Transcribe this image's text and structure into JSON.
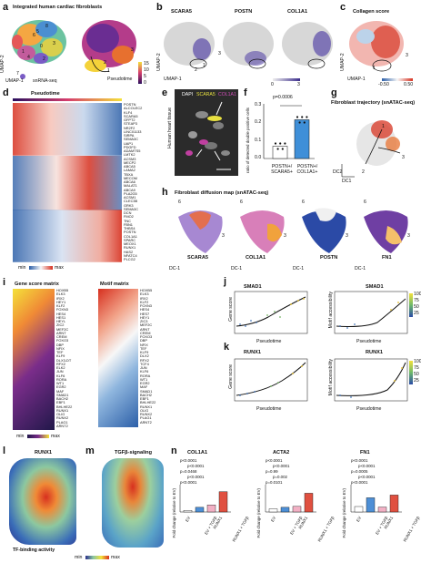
{
  "panels": {
    "a": {
      "letter": "a",
      "title": "Integrated human cardiac fibroblasts",
      "umap1": "UMAP-1",
      "umap2": "UMAP-2",
      "modality": "snRNA-seq",
      "pseudotime": "Pseudotime",
      "cb_ticks": [
        "15",
        "10",
        "5",
        "0"
      ],
      "clusters": [
        "0",
        "1",
        "2",
        "3",
        "4",
        "5",
        "6",
        "7",
        "8"
      ],
      "traj": [
        "1",
        "2",
        "3"
      ]
    },
    "b": {
      "letter": "b",
      "genes": [
        "SCARA5",
        "POSTN",
        "COL1A1"
      ],
      "umap1": "UMAP-1",
      "umap2": "UMAP-2",
      "traj": [
        "1",
        "2",
        "3"
      ],
      "cb_ticks": [
        "0",
        "3"
      ]
    },
    "c": {
      "letter": "c",
      "title": "Collagen score",
      "umap1": "UMAP-1",
      "umap2": "UMAP-2",
      "traj": [
        "1",
        "3"
      ],
      "cb_ticks": [
        "-0.50",
        "0.50"
      ]
    },
    "d": {
      "letter": "d",
      "title": "Pseudotime",
      "legend_min": "min",
      "legend_max": "max",
      "genes": [
        "POSTN",
        "ALCOLEC2",
        "KLF4",
        "SCARA5",
        "GFPT2",
        "STEAP3",
        "NR2F2",
        "LINC01133",
        "SIRPA",
        "SEMA3C",
        "UAP1",
        "PDGFD",
        "ADAMTS5",
        "LMTK2",
        "ACSM3",
        "MECP2",
        "ABCA5",
        "LAMA2",
        "TBXA",
        "MECOM",
        "ABCA6",
        "MALAT1",
        "ABCA9",
        "PLA2G5",
        "ACSM1",
        "CLEC3B",
        "GRK3",
        "SEMA3C",
        "DCN",
        "FMO2",
        "TNC",
        "FBN1",
        "THBS4",
        "POSTN",
        "COL1A1",
        "SPARC",
        "MEOX1",
        "RUNX1",
        "HAS2",
        "NFATC4",
        "PLCG2"
      ]
    },
    "e": {
      "letter": "e",
      "labels": [
        "DAPI",
        "SCARA5",
        "COL1A1"
      ],
      "side": "Human heart tissue"
    },
    "f": {
      "letter": "f",
      "pval": "p=0.0006",
      "ylabel": "ratio of detected double positive cells",
      "yticks": [
        "0.3",
        "0.2",
        "0.1",
        "0.0"
      ],
      "groups": [
        "POSTN+/ SCARA5+",
        "POSTN+/ COL1A1+"
      ]
    },
    "g": {
      "letter": "g",
      "title": "Fibroblast trajectory (snATAC-seq)",
      "dc1": "DC1",
      "dc2": "DC2",
      "traj": [
        "1",
        "2",
        "3"
      ]
    },
    "h": {
      "letter": "h",
      "title": "Fibroblast diffusion map (snATAC-seq)",
      "maps": [
        "SCARA5",
        "COL1A1",
        "POSTN",
        "FN1"
      ],
      "dc1": "DC-1",
      "dc2": "DC-2",
      "traj": [
        "1",
        "2",
        "3",
        "6"
      ]
    },
    "i": {
      "letter": "i",
      "gene_title": "Gene score matrix",
      "motif_title": "Motif matrix",
      "legend_min": "min",
      "legend_max": "max",
      "gene_rows": [
        "HOXB5",
        "ELK3",
        "IRX2",
        "HEY1",
        "KLF2",
        "FOXN3",
        "HES4",
        "HES1",
        "HEYL",
        "ZIC2",
        "MEF2C",
        "ARNT",
        "CREM",
        "FOXO3",
        "DBP",
        "NFIX",
        "TEF",
        "KLF9",
        "DLX3-DT",
        "RFX2",
        "ELK2",
        "JUN",
        "KLF6",
        "RORA",
        "WT1",
        "EGR2",
        "MAF",
        "SMAD1",
        "BACH2",
        "EBF1",
        "BHLHE22",
        "RUNX1",
        "OLIG",
        "RUNX2",
        "PLAG1",
        "ARNT2"
      ],
      "motif_rows": [
        "HOXB5",
        "ELK3",
        "IRX2",
        "KLF2",
        "FOXN3",
        "HES4",
        "HES7",
        "HEY1",
        "ZIC3",
        "MEF2C",
        "ARNT",
        "CREM",
        "FOXO3",
        "DBP",
        "NFIX",
        "TEF",
        "KLF9",
        "DLX2",
        "RFX2",
        "TCF4",
        "JUN",
        "KLF6",
        "RORA",
        "WT1",
        "EGR2",
        "MAF",
        "SMAD1",
        "BACH2",
        "EBF1",
        "BHLHE22",
        "RUNX1",
        "OLIG",
        "RUNX2",
        "PLAG1",
        "ARNT2"
      ]
    },
    "j": {
      "letter": "j",
      "gene": "SMAD1",
      "ylabel1": "Gene score",
      "ylabel2": "Motif accessibility",
      "xlabel": "Pseudotime",
      "xticks": [
        "0",
        "25",
        "50",
        "75",
        "100"
      ],
      "cb_ticks": [
        "100",
        "75",
        "50",
        "25"
      ]
    },
    "k": {
      "letter": "k",
      "gene": "RUNX1",
      "ylabel1": "Gene score",
      "ylabel2": "Motif accessibility",
      "xlabel": "Pseudotime",
      "xticks": [
        "0",
        "25",
        "50",
        "75",
        "100"
      ],
      "cb_ticks": [
        "100",
        "75",
        "50",
        "25"
      ]
    },
    "l": {
      "letter": "l",
      "title": "RUNX1",
      "caption": "TF-binding activity",
      "legend_min": "min",
      "legend_max": "max"
    },
    "m": {
      "letter": "m",
      "title": "TGFβ-signaling"
    },
    "n": {
      "letter": "n",
      "genes": [
        "COL1A1",
        "ACTA2",
        "FN1"
      ],
      "ylabel": "Fold change (relative to EV)",
      "groups": [
        "EV",
        "EV + TGFβ",
        "RUNX1",
        "RUNX1 + TGFβ"
      ],
      "pvals_col1a1": [
        "p<0.0001",
        "p<0.0001",
        "p=0.0468",
        "p<0.0001",
        "p<0.0001"
      ],
      "pvals_acta2": [
        "p<0.0001",
        "p<0.0001",
        "p=0.99",
        "p=0.002",
        "p=0.0101"
      ],
      "pvals_fn1": [
        "p<0.0001",
        "p<0.0001",
        "p=0.0005",
        "p<0.0001",
        "p<0.0001"
      ]
    }
  },
  "chart_data": [
    {
      "type": "bar",
      "panel": "f",
      "categories": [
        "POSTN+/ SCARA5+",
        "POSTN+/ COL1A1+"
      ],
      "values": [
        0.07,
        0.22
      ],
      "ylim": [
        0,
        0.3
      ],
      "annotation": "p=0.0006"
    },
    {
      "type": "bar",
      "panel": "n-COL1A1",
      "categories": [
        "EV",
        "EV + TGFβ",
        "RUNX1",
        "RUNX1 + TGFβ"
      ],
      "values": [
        1,
        3,
        4.5,
        13
      ]
    },
    {
      "type": "bar",
      "panel": "n-ACTA2",
      "categories": [
        "EV",
        "EV + TGFβ",
        "RUNX1",
        "RUNX1 + TGFβ"
      ],
      "values": [
        1,
        1.5,
        1.8,
        6
      ]
    },
    {
      "type": "bar",
      "panel": "n-FN1",
      "categories": [
        "EV",
        "EV + TGFβ",
        "RUNX1",
        "RUNX1 + TGFβ"
      ],
      "values": [
        1,
        2.6,
        0.9,
        3.1
      ]
    }
  ],
  "colors": {
    "heat_hi": "#d7301f",
    "heat_lo": "#2c5fa8",
    "mid": "#f7f7f7",
    "blue_bar": "#3f8fd8",
    "red_bar": "#e05040"
  }
}
